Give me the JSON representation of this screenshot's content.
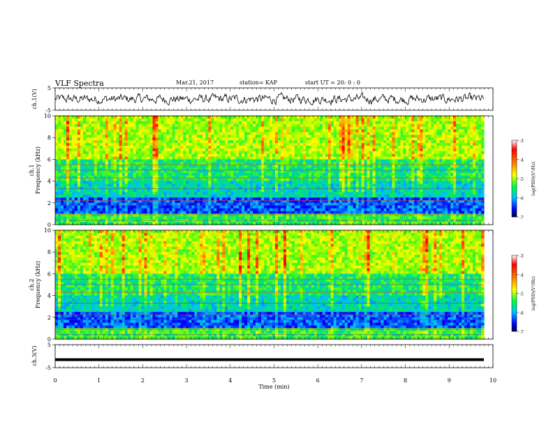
{
  "header": {
    "title": "VLF Spectra",
    "date": "Mar.21, 2017",
    "station": "station= KAP",
    "start_time": "start UT =  20: 0  : 0"
  },
  "chart_data": [
    {
      "type": "line",
      "ylabel": "ch.1(V)",
      "ylim": [
        -5,
        5
      ],
      "yticks": [
        "5",
        "-5"
      ],
      "description_values": "noisy waveform around 0 V, amplitude roughly ±3 V",
      "xlim": [
        0,
        10
      ]
    },
    {
      "type": "heatmap",
      "ylabel_line1": "ch.1",
      "ylabel_line2": "Frequency (kHz)",
      "ylim": [
        0,
        10
      ],
      "yticks": [
        "0",
        "2",
        "4",
        "6",
        "8",
        "10"
      ],
      "xlim": [
        0,
        10
      ],
      "colorbar": {
        "label": "log(PSD)(V²/Hz)",
        "range": [
          -7,
          -3
        ],
        "ticks": [
          "-3",
          "-4",
          "-5",
          "-6",
          "-7"
        ]
      }
    },
    {
      "type": "heatmap",
      "ylabel_line1": "ch.2",
      "ylabel_line2": "Frequency (kHz)",
      "ylim": [
        0,
        10
      ],
      "yticks": [
        "0",
        "2",
        "4",
        "6",
        "8",
        "10"
      ],
      "xlim": [
        0,
        10
      ],
      "colorbar": {
        "label": "log(PSD)(V²/Hz)",
        "range": [
          -7,
          -3
        ],
        "ticks": [
          "-3",
          "-4",
          "-5",
          "-6",
          "-7"
        ]
      }
    },
    {
      "type": "line",
      "ylabel": "ch.3(V)",
      "ylim": [
        -5,
        5
      ],
      "yticks": [
        "5",
        "-5"
      ],
      "values_constant": -1.5,
      "xlim": [
        0,
        10
      ]
    }
  ],
  "xaxis": {
    "label": "Time (min)",
    "ticks": [
      "0",
      "1",
      "2",
      "3",
      "4",
      "5",
      "6",
      "7",
      "8",
      "9",
      "10"
    ],
    "range": [
      0,
      10
    ]
  },
  "colors": {
    "spectrum_low": "#0000a0",
    "spectrum_mid": "#00e070",
    "spectrum_high": "#ff0000"
  }
}
